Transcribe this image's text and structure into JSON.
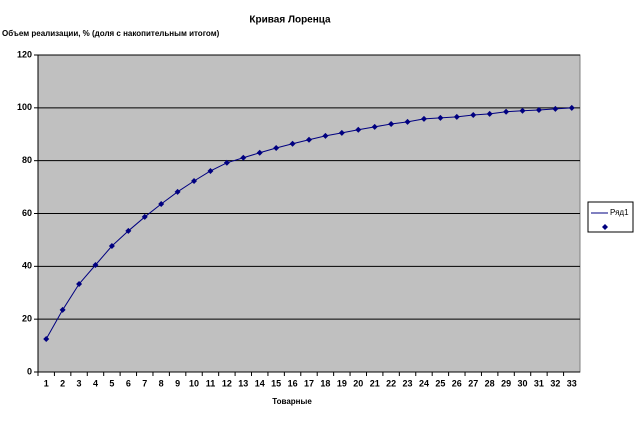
{
  "chart_data": {
    "type": "line",
    "title": "Кривая Лоренца",
    "y_label": "Объем реализации, % (доля с накопительным итогом)",
    "x_label": "Товарные",
    "categories": [
      "1",
      "2",
      "3",
      "4",
      "5",
      "6",
      "7",
      "8",
      "9",
      "10",
      "11",
      "12",
      "13",
      "14",
      "15",
      "16",
      "17",
      "18",
      "19",
      "20",
      "21",
      "22",
      "23",
      "24",
      "25",
      "26",
      "27",
      "28",
      "29",
      "30",
      "31",
      "32",
      "33"
    ],
    "series": [
      {
        "name": "Ряд1",
        "color": "#000080",
        "values": [
          12.5,
          23.5,
          33.3,
          40.5,
          47.7,
          53.4,
          58.7,
          63.6,
          68.2,
          72.3,
          76.1,
          79.2,
          81.1,
          83,
          84.8,
          86.4,
          87.9,
          89.4,
          90.5,
          91.7,
          92.8,
          93.9,
          94.7,
          95.8,
          96.2,
          96.6,
          97.3,
          97.7,
          98.5,
          98.9,
          99.2,
          99.6,
          100
        ]
      }
    ],
    "ylim": [
      0,
      120
    ],
    "yticks": [
      0,
      20,
      40,
      60,
      80,
      100,
      120
    ],
    "grid": true,
    "legend": "right"
  }
}
